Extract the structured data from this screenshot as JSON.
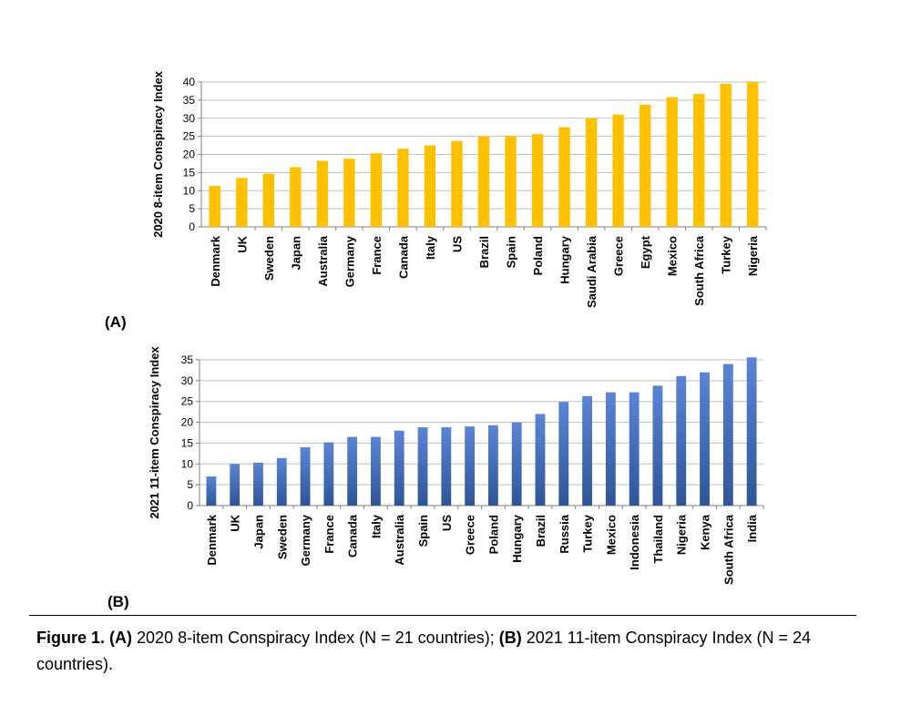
{
  "chart_data": [
    {
      "type": "bar",
      "panel_label": "(A)",
      "ylabel": "2020 8-item Conspiracy Index",
      "xlabel": "",
      "ylim": [
        0,
        40
      ],
      "yticks": [
        0,
        5,
        10,
        15,
        20,
        25,
        30,
        35,
        40
      ],
      "grid": true,
      "color": "#FFC000",
      "categories": [
        "Denmark",
        "UK",
        "Sweden",
        "Japan",
        "Australia",
        "Germany",
        "France",
        "Canada",
        "Italy",
        "US",
        "Brazil",
        "Spain",
        "Poland",
        "Hungary",
        "Saudi Arabia",
        "Greece",
        "Egypt",
        "Mexico",
        "South Africa",
        "Turkey",
        "Nigeria"
      ],
      "values": [
        11.3,
        13.5,
        14.7,
        16.5,
        18.2,
        18.8,
        20.3,
        21.6,
        22.5,
        23.7,
        25.0,
        25.1,
        25.6,
        27.5,
        30.0,
        31.0,
        33.7,
        35.8,
        36.7,
        39.5,
        40.0
      ]
    },
    {
      "type": "bar",
      "panel_label": "(B)",
      "ylabel": "2021 11-item Conspiracy Index",
      "xlabel": "",
      "ylim": [
        0,
        35
      ],
      "yticks": [
        0,
        5,
        10,
        15,
        20,
        25,
        30,
        35
      ],
      "grid": true,
      "color_top": "#4A72C4",
      "color_bottom": "#2F5597",
      "categories": [
        "Denmark",
        "UK",
        "Japan",
        "Sweden",
        "Germany",
        "France",
        "Canada",
        "Italy",
        "Australia",
        "Spain",
        "US",
        "Greece",
        "Poland",
        "Hungary",
        "Brazil",
        "Russia",
        "Turkey",
        "Mexico",
        "Indonesia",
        "Thailand",
        "Nigeria",
        "Kenya",
        "South Africa",
        "India"
      ],
      "values": [
        7.0,
        10.0,
        10.3,
        11.4,
        14.0,
        15.2,
        16.5,
        16.5,
        18.0,
        18.8,
        18.8,
        19.0,
        19.3,
        20.0,
        22.0,
        24.9,
        26.3,
        27.2,
        27.2,
        28.8,
        31.1,
        32.0,
        34.0,
        35.6
      ]
    }
  ],
  "caption": {
    "fig_label": "Figure 1.",
    "part_a_label": "(A)",
    "part_a_text": " 2020 8-item Conspiracy Index (N = 21 countries); ",
    "part_b_label": "(B)",
    "part_b_text": " 2021 11-item Conspiracy Index (N = 24 countries)."
  }
}
